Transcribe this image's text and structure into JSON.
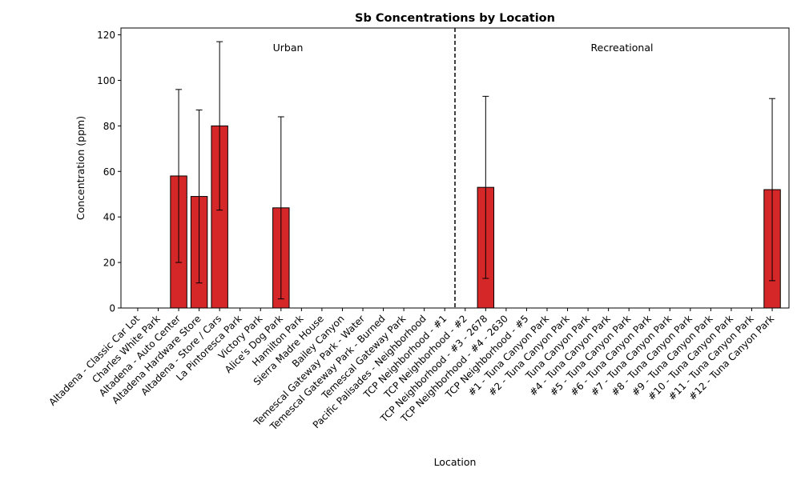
{
  "chart_data": {
    "type": "bar",
    "title": "Sb Concentrations by Location",
    "xlabel": "Location",
    "ylabel": "Concentration (ppm)",
    "ylim": [
      0,
      123
    ],
    "yticks": [
      0,
      20,
      40,
      60,
      80,
      100,
      120
    ],
    "bar_color": "#d62728",
    "grid": false,
    "categories": [
      "Altadena - Classic Car Lot",
      "Charles White Park",
      "Altadena - Auto Center",
      "Altadena Hardware Store",
      "Altadena - Store / Cars",
      "La Pintoresca Park",
      "Victory Park",
      "Alice's Dog Park",
      "Hamilton Park",
      "Sierra Madre House",
      "Bailey Canyon",
      "Temescal Gateway Park - Water",
      "Temescal Gateway Park - Burned",
      "Temescal Gateway Park",
      "Pacific Palisades - Neighborhood",
      "TCP Neighborhood - #1",
      "TCP Neighborhood - #2",
      "TCP Neighborhood - #3 - 2678",
      "TCP Neighborhood - #4 - 2630",
      "TCP Neighborhood - #5",
      "#1 - Tuna Canyon Park",
      "#2 - Tuna Canyon Park",
      "Tuna Canyon Park",
      "#4 - Tuna Canyon Park",
      "#5 - Tuna Canyon Park",
      "#6 - Tuna Canyon Park",
      "#7 - Tuna Canyon Park",
      "#8 - Tuna Canyon Park",
      "#9 - Tuna Canyon Park",
      "#10 - Tuna Canyon Park",
      "#11 - Tuna Canyon Park",
      "#12 - Tuna Canyon Park"
    ],
    "values": [
      0,
      0,
      58,
      49,
      80,
      0,
      0,
      44,
      0,
      0,
      0,
      0,
      0,
      0,
      0,
      0,
      0,
      53,
      0,
      0,
      0,
      0,
      0,
      0,
      0,
      0,
      0,
      0,
      0,
      0,
      0,
      52
    ],
    "errors": [
      0,
      0,
      38,
      38,
      37,
      0,
      0,
      40,
      0,
      0,
      0,
      0,
      0,
      0,
      0,
      0,
      0,
      40,
      0,
      0,
      0,
      0,
      0,
      0,
      0,
      0,
      0,
      0,
      0,
      0,
      0,
      40
    ],
    "divider_after_index": 15,
    "divider_style": "dashed",
    "annotations": [
      {
        "text": "Urban",
        "group": "left"
      },
      {
        "text": "Recreational",
        "group": "right"
      }
    ]
  }
}
